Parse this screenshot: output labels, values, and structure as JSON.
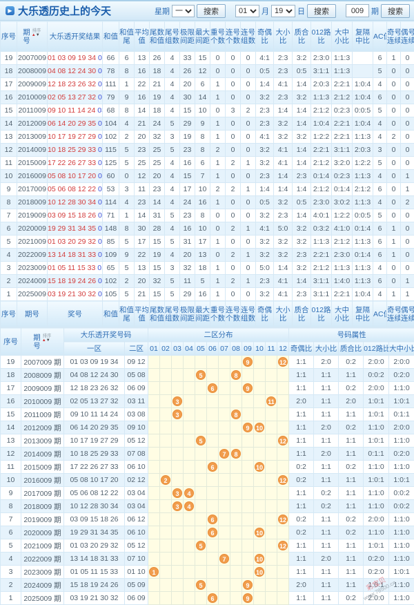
{
  "header": {
    "title": "大乐透历史上的今天",
    "week_label": "星期",
    "week_value": "一",
    "search_label": "搜索",
    "month_value": "01",
    "month_label": "月",
    "day_value": "19",
    "day_label": "日",
    "issue_value": "009",
    "issue_label": "期"
  },
  "colors": {
    "accent_blue": "#2f6eb5",
    "title_blue": "#1a5dab",
    "row_alt": "#e6f3fc",
    "front_number_red": "#d23b3b",
    "back_number_blue": "#3a50d9",
    "dist_zone_yellow": "#fffde4",
    "ball_orange": "#f19d4d"
  },
  "table1": {
    "sort_label": "排序",
    "columns": [
      {
        "lines": [
          "序号"
        ]
      },
      {
        "lines": [
          "期",
          "号"
        ],
        "sort": true
      },
      {
        "lines": [
          "大乐透开奖结果"
        ]
      },
      {
        "lines": [
          "和值"
        ]
      },
      {
        "lines": [
          "和值",
          "尾"
        ]
      },
      {
        "lines": [
          "平均",
          "值"
        ]
      },
      {
        "lines": [
          "尾数",
          "和值"
        ]
      },
      {
        "lines": [
          "尾号",
          "组数"
        ]
      },
      {
        "lines": [
          "极限",
          "间距"
        ]
      },
      {
        "lines": [
          "最大",
          "间距"
        ]
      },
      {
        "lines": [
          "重号",
          "个数"
        ]
      },
      {
        "lines": [
          "连号",
          "个数"
        ]
      },
      {
        "lines": [
          "连号",
          "组数"
        ]
      },
      {
        "lines": [
          "奇偶",
          "比"
        ]
      },
      {
        "lines": [
          "大小",
          "比"
        ]
      },
      {
        "lines": [
          "质合",
          "比"
        ]
      },
      {
        "lines": [
          "012路",
          "比"
        ]
      },
      {
        "lines": [
          "大中",
          "小比"
        ]
      },
      {
        "lines": [
          "复隔",
          "中比"
        ]
      },
      {
        "lines": [
          "AC值"
        ]
      },
      {
        "lines": [
          "奇号",
          "连续"
        ]
      },
      {
        "lines": [
          "偶号",
          "连续"
        ]
      }
    ],
    "footer_columns": [
      {
        "lines": [
          "序号"
        ]
      },
      {
        "lines": [
          "期号"
        ]
      },
      {
        "lines": [
          "奖号"
        ]
      },
      {
        "lines": [
          "和值"
        ]
      },
      {
        "lines": [
          "和值",
          "尾"
        ]
      },
      {
        "lines": [
          "平均",
          "值"
        ]
      },
      {
        "lines": [
          "尾数",
          "和值"
        ]
      },
      {
        "lines": [
          "尾号",
          "组数"
        ]
      },
      {
        "lines": [
          "极限",
          "间距"
        ]
      },
      {
        "lines": [
          "最大",
          "间距"
        ]
      },
      {
        "lines": [
          "重号",
          "个数"
        ]
      },
      {
        "lines": [
          "连号",
          "个数"
        ]
      },
      {
        "lines": [
          "连号",
          "组数"
        ]
      },
      {
        "lines": [
          "奇偶",
          "比"
        ]
      },
      {
        "lines": [
          "大小",
          "比"
        ]
      },
      {
        "lines": [
          "质合",
          "比"
        ]
      },
      {
        "lines": [
          "012路",
          "比"
        ]
      },
      {
        "lines": [
          "大中",
          "小比"
        ]
      },
      {
        "lines": [
          "复隔",
          "中比"
        ]
      },
      {
        "lines": [
          "AC值"
        ]
      },
      {
        "lines": [
          "奇号",
          "连续"
        ]
      },
      {
        "lines": [
          "偶号",
          "连续"
        ]
      }
    ],
    "rows": [
      {
        "seq": "19",
        "issue": "2007009",
        "front": "01 03 09 19 34",
        "back": "09 12",
        "values": [
          "66",
          "6",
          "13",
          "26",
          "4",
          "33",
          "15",
          "0",
          "0",
          "0",
          "4:1",
          "2:3",
          "3:2",
          "2:3:0",
          "1:1:3",
          "",
          "6",
          "1",
          "0"
        ]
      },
      {
        "seq": "18",
        "issue": "2008009",
        "front": "04 08 12 24 30",
        "back": "05 08",
        "values": [
          "78",
          "8",
          "16",
          "18",
          "4",
          "26",
          "12",
          "0",
          "0",
          "0",
          "0:5",
          "2:3",
          "0:5",
          "3:1:1",
          "1:1:3",
          "",
          "5",
          "0",
          "0"
        ]
      },
      {
        "seq": "17",
        "issue": "2009009",
        "front": "12 18 23 26 32",
        "back": "06 09",
        "values": [
          "111",
          "1",
          "22",
          "21",
          "4",
          "20",
          "6",
          "1",
          "0",
          "0",
          "1:4",
          "4:1",
          "1:4",
          "2:0:3",
          "2:2:1",
          "1:0:4",
          "4",
          "0",
          "0"
        ]
      },
      {
        "seq": "16",
        "issue": "2010009",
        "front": "02 05 13 27 32",
        "back": "03 11",
        "values": [
          "79",
          "9",
          "16",
          "19",
          "4",
          "30",
          "14",
          "1",
          "0",
          "0",
          "3:2",
          "2:3",
          "3:2",
          "1:1:3",
          "2:1:2",
          "1:0:4",
          "6",
          "0",
          "0"
        ]
      },
      {
        "seq": "15",
        "issue": "2011009",
        "front": "09 10 11 14 24",
        "back": "03 08",
        "values": [
          "68",
          "8",
          "14",
          "18",
          "4",
          "15",
          "10",
          "0",
          "3",
          "2",
          "2:3",
          "1:4",
          "1:4",
          "2:1:2",
          "0:2:3",
          "0:0:5",
          "5",
          "0",
          "0"
        ]
      },
      {
        "seq": "14",
        "issue": "2012009",
        "front": "06 14 20 29 35",
        "back": "09 10",
        "values": [
          "104",
          "4",
          "21",
          "24",
          "5",
          "29",
          "9",
          "1",
          "0",
          "0",
          "2:3",
          "3:2",
          "1:4",
          "1:0:4",
          "2:2:1",
          "1:0:4",
          "4",
          "0",
          "0"
        ]
      },
      {
        "seq": "13",
        "issue": "2013009",
        "front": "10 17 19 27 29",
        "back": "05 12",
        "values": [
          "102",
          "2",
          "20",
          "32",
          "3",
          "19",
          "8",
          "1",
          "0",
          "0",
          "4:1",
          "3:2",
          "3:2",
          "1:2:2",
          "2:2:1",
          "1:1:3",
          "4",
          "2",
          "0"
        ]
      },
      {
        "seq": "12",
        "issue": "2014009",
        "front": "10 18 25 29 33",
        "back": "07 08",
        "values": [
          "115",
          "5",
          "23",
          "25",
          "5",
          "23",
          "8",
          "2",
          "0",
          "0",
          "3:2",
          "4:1",
          "1:4",
          "2:2:1",
          "3:1:1",
          "2:0:3",
          "3",
          "0",
          "0"
        ]
      },
      {
        "seq": "11",
        "issue": "2015009",
        "front": "17 22 26 27 33",
        "back": "06 10",
        "values": [
          "125",
          "5",
          "25",
          "25",
          "4",
          "16",
          "6",
          "1",
          "2",
          "1",
          "3:2",
          "4:1",
          "1:4",
          "2:1:2",
          "3:2:0",
          "1:2:2",
          "5",
          "0",
          "0"
        ]
      },
      {
        "seq": "10",
        "issue": "2016009",
        "front": "05 08 10 17 20",
        "back": "02 12",
        "values": [
          "60",
          "0",
          "12",
          "20",
          "4",
          "15",
          "7",
          "1",
          "0",
          "0",
          "2:3",
          "1:4",
          "2:3",
          "0:1:4",
          "0:2:3",
          "1:1:3",
          "4",
          "0",
          "1"
        ]
      },
      {
        "seq": "9",
        "issue": "2017009",
        "front": "05 06 08 12 22",
        "back": "03 04",
        "values": [
          "53",
          "3",
          "11",
          "23",
          "4",
          "17",
          "10",
          "2",
          "2",
          "1",
          "1:4",
          "1:4",
          "1:4",
          "2:1:2",
          "0:1:4",
          "2:1:2",
          "6",
          "0",
          "1"
        ]
      },
      {
        "seq": "8",
        "issue": "2018009",
        "front": "10 12 28 30 34",
        "back": "03 04",
        "values": [
          "114",
          "4",
          "23",
          "14",
          "4",
          "24",
          "16",
          "1",
          "0",
          "0",
          "0:5",
          "3:2",
          "0:5",
          "2:3:0",
          "3:0:2",
          "1:1:3",
          "4",
          "0",
          "2"
        ]
      },
      {
        "seq": "7",
        "issue": "2019009",
        "front": "03 09 15 18 26",
        "back": "06 12",
        "values": [
          "71",
          "1",
          "14",
          "31",
          "5",
          "23",
          "8",
          "0",
          "0",
          "0",
          "3:2",
          "2:3",
          "1:4",
          "4:0:1",
          "1:2:2",
          "0:0:5",
          "5",
          "0",
          "0"
        ]
      },
      {
        "seq": "6",
        "issue": "2020009",
        "front": "19 29 31 34 35",
        "back": "06 10",
        "values": [
          "148",
          "8",
          "30",
          "28",
          "4",
          "16",
          "10",
          "0",
          "2",
          "1",
          "4:1",
          "5:0",
          "3:2",
          "0:3:2",
          "4:1:0",
          "0:1:4",
          "6",
          "1",
          "0"
        ]
      },
      {
        "seq": "5",
        "issue": "2021009",
        "front": "01 03 20 29 32",
        "back": "05 12",
        "values": [
          "85",
          "5",
          "17",
          "15",
          "5",
          "31",
          "17",
          "1",
          "0",
          "0",
          "3:2",
          "3:2",
          "3:2",
          "1:1:3",
          "2:1:2",
          "1:1:3",
          "6",
          "1",
          "0"
        ]
      },
      {
        "seq": "4",
        "issue": "2022009",
        "front": "13 14 18 31 33",
        "back": "07 10",
        "values": [
          "109",
          "9",
          "22",
          "19",
          "4",
          "20",
          "13",
          "0",
          "2",
          "1",
          "3:2",
          "3:2",
          "2:3",
          "2:2:1",
          "2:3:0",
          "0:1:4",
          "6",
          "1",
          "0"
        ]
      },
      {
        "seq": "3",
        "issue": "2023009",
        "front": "01 05 11 15 33",
        "back": "01 10",
        "values": [
          "65",
          "5",
          "13",
          "15",
          "3",
          "32",
          "18",
          "1",
          "0",
          "0",
          "5:0",
          "1:4",
          "3:2",
          "2:1:2",
          "1:1:3",
          "1:1:3",
          "4",
          "0",
          "0"
        ]
      },
      {
        "seq": "2",
        "issue": "2024009",
        "front": "15 18 19 24 26",
        "back": "05 09",
        "values": [
          "102",
          "2",
          "20",
          "32",
          "5",
          "11",
          "5",
          "1",
          "2",
          "1",
          "2:3",
          "4:1",
          "1:4",
          "3:1:1",
          "1:4:0",
          "1:1:3",
          "6",
          "0",
          "1"
        ]
      },
      {
        "seq": "1",
        "issue": "2025009",
        "front": "03 19 21 30 32",
        "back": "06 09",
        "values": [
          "105",
          "5",
          "21",
          "15",
          "5",
          "29",
          "16",
          "1",
          "0",
          "0",
          "3:2",
          "4:1",
          "2:3",
          "3:1:1",
          "2:2:1",
          "1:0:4",
          "4",
          "1",
          "1"
        ]
      }
    ]
  },
  "table2": {
    "sort_label": "排序",
    "issue_suffix": "期",
    "headers": {
      "seq": "序号",
      "issue_lines": [
        "期",
        "号"
      ],
      "group_numbers": "大乐透开奖号码",
      "zone1": "一区",
      "zone2": "二区",
      "group_dist": "二区分布",
      "dist": [
        "01",
        "02",
        "03",
        "04",
        "05",
        "06",
        "07",
        "08",
        "09",
        "10",
        "11",
        "12"
      ],
      "group_attr": "号码属性",
      "attrs": [
        "奇偶比",
        "大小比",
        "质合比",
        "012路比",
        "大中小比"
      ]
    },
    "rows": [
      {
        "seq": "19",
        "issue": "2007009",
        "front": "01 03 09 19 34",
        "back": "09 12",
        "balls": [
          9,
          12
        ],
        "attrs": [
          "1:1",
          "2:0",
          "0:2",
          "2:0:0",
          "2:0:0"
        ]
      },
      {
        "seq": "18",
        "issue": "2008009",
        "front": "04 08 12 24 30",
        "back": "05 08",
        "balls": [
          5,
          8
        ],
        "attrs": [
          "1:1",
          "1:1",
          "1:1",
          "0:0:2",
          "0:2:0"
        ]
      },
      {
        "seq": "17",
        "issue": "2009009",
        "front": "12 18 23 26 32",
        "back": "06 09",
        "balls": [
          6,
          9
        ],
        "attrs": [
          "1:1",
          "1:1",
          "0:2",
          "2:0:0",
          "1:1:0"
        ]
      },
      {
        "seq": "16",
        "issue": "2010009",
        "front": "02 05 13 27 32",
        "back": "03 11",
        "balls": [
          3,
          11
        ],
        "attrs": [
          "2:0",
          "1:1",
          "2:0",
          "1:0:1",
          "1:0:1"
        ]
      },
      {
        "seq": "15",
        "issue": "2011009",
        "front": "09 10 11 14 24",
        "back": "03 08",
        "balls": [
          3,
          8
        ],
        "attrs": [
          "1:1",
          "1:1",
          "1:1",
          "1:0:1",
          "0:1:1"
        ]
      },
      {
        "seq": "14",
        "issue": "2012009",
        "front": "06 14 20 29 35",
        "back": "09 10",
        "balls": [
          9,
          10
        ],
        "attrs": [
          "1:1",
          "2:0",
          "0:2",
          "1:1:0",
          "2:0:0"
        ]
      },
      {
        "seq": "13",
        "issue": "2013009",
        "front": "10 17 19 27 29",
        "back": "05 12",
        "balls": [
          5,
          12
        ],
        "attrs": [
          "1:1",
          "1:1",
          "1:1",
          "1:0:1",
          "1:1:0"
        ]
      },
      {
        "seq": "12",
        "issue": "2014009",
        "front": "10 18 25 29 33",
        "back": "07 08",
        "balls": [
          7,
          8
        ],
        "attrs": [
          "1:1",
          "2:0",
          "1:1",
          "0:1:1",
          "0:2:0"
        ]
      },
      {
        "seq": "11",
        "issue": "2015009",
        "front": "17 22 26 27 33",
        "back": "06 10",
        "balls": [
          6,
          10
        ],
        "attrs": [
          "0:2",
          "1:1",
          "0:2",
          "1:1:0",
          "1:1:0"
        ]
      },
      {
        "seq": "10",
        "issue": "2016009",
        "front": "05 08 10 17 20",
        "back": "02 12",
        "balls": [
          2,
          12
        ],
        "attrs": [
          "0:2",
          "1:1",
          "1:1",
          "1:0:1",
          "1:0:1"
        ]
      },
      {
        "seq": "9",
        "issue": "2017009",
        "front": "05 06 08 12 22",
        "back": "03 04",
        "balls": [
          3,
          4
        ],
        "attrs": [
          "1:1",
          "0:2",
          "1:1",
          "1:1:0",
          "0:0:2"
        ]
      },
      {
        "seq": "8",
        "issue": "2018009",
        "front": "10 12 28 30 34",
        "back": "03 04",
        "balls": [
          3,
          4
        ],
        "attrs": [
          "1:1",
          "0:2",
          "1:1",
          "1:1:0",
          "0:0:2"
        ]
      },
      {
        "seq": "7",
        "issue": "2019009",
        "front": "03 09 15 18 26",
        "back": "06 12",
        "balls": [
          6,
          12
        ],
        "attrs": [
          "0:2",
          "1:1",
          "0:2",
          "2:0:0",
          "1:1:0"
        ]
      },
      {
        "seq": "6",
        "issue": "2020009",
        "front": "19 29 31 34 35",
        "back": "06 10",
        "balls": [
          6,
          10
        ],
        "attrs": [
          "0:2",
          "1:1",
          "0:2",
          "1:1:0",
          "1:1:0"
        ]
      },
      {
        "seq": "5",
        "issue": "2021009",
        "front": "01 03 20 29 32",
        "back": "05 12",
        "balls": [
          5,
          12
        ],
        "attrs": [
          "1:1",
          "1:1",
          "1:1",
          "1:0:1",
          "1:1:0"
        ]
      },
      {
        "seq": "4",
        "issue": "2022009",
        "front": "13 14 18 31 33",
        "back": "07 10",
        "balls": [
          7,
          10
        ],
        "attrs": [
          "1:1",
          "2:0",
          "1:1",
          "0:2:0",
          "1:1:0"
        ]
      },
      {
        "seq": "3",
        "issue": "2023009",
        "front": "01 05 11 15 33",
        "back": "01 10",
        "balls": [
          1,
          10
        ],
        "attrs": [
          "1:1",
          "1:1",
          "1:1",
          "0:2:0",
          "1:0:1"
        ]
      },
      {
        "seq": "2",
        "issue": "2024009",
        "front": "15 18 19 24 26",
        "back": "05 09",
        "balls": [
          5,
          9
        ],
        "attrs": [
          "2:0",
          "1:1",
          "1:1",
          "1:0:1",
          "1:1:0"
        ]
      },
      {
        "seq": "1",
        "issue": "2025009",
        "front": "03 19 21 30 32",
        "back": "06 09",
        "balls": [
          6,
          9
        ],
        "attrs": [
          "1:1",
          "1:1",
          "0:2",
          "2:0:0",
          "1:1:0"
        ]
      }
    ]
  },
  "watermark": {
    "brand": "彩宝贝",
    "url": "www.78500.cn"
  }
}
